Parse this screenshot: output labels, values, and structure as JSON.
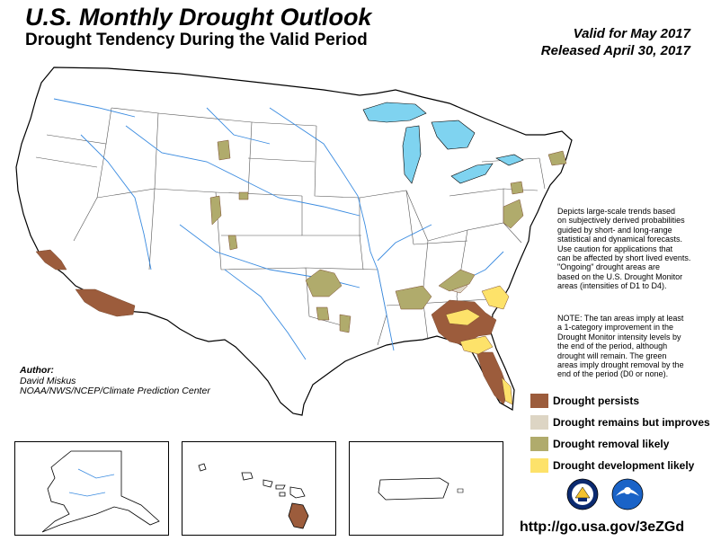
{
  "header": {
    "title": "U.S. Monthly Drought Outlook",
    "subtitle": "Drought Tendency During the Valid Period",
    "valid": "Valid for May 2017",
    "released": "Released April 30, 2017"
  },
  "description": {
    "lines": [
      "Depicts large-scale trends based",
      "on subjectively derived probabilities",
      "guided by short- and long-range",
      "statistical and dynamical forecasts.",
      "Use caution for applications that",
      "can be affected by short lived events.",
      "\"Ongoing\" drought areas are",
      "based on the U.S. Drought Monitor",
      "areas (intensities of D1 to D4)."
    ]
  },
  "note": {
    "lines": [
      "NOTE: The tan areas imply at least",
      "a 1-category improvement in the",
      "Drought Monitor intensity levels by",
      "the end of the period, although",
      "drought will remain. The green",
      "areas imply drought removal by the",
      "end of the period (D0 or none)."
    ]
  },
  "author": {
    "label": "Author:",
    "name": "David Miskus",
    "org": "NOAA/NWS/NCEP/Climate Prediction Center"
  },
  "legend": [
    {
      "label": "Drought persists",
      "color": "#9c5c3c"
    },
    {
      "label": "Drought remains but improves",
      "color": "#ddd5c4"
    },
    {
      "label": "Drought removal likely",
      "color": "#b0ab6c"
    },
    {
      "label": "Drought development likely",
      "color": "#fde26a"
    }
  ],
  "colors": {
    "water": "#7fd3f0",
    "river": "#3a8be0",
    "boundary": "#000000",
    "state_line": "#555555"
  },
  "logos": [
    "doc-seal-icon",
    "noaa-logo-icon"
  ],
  "url": "http://go.usa.gov/3eZGd"
}
